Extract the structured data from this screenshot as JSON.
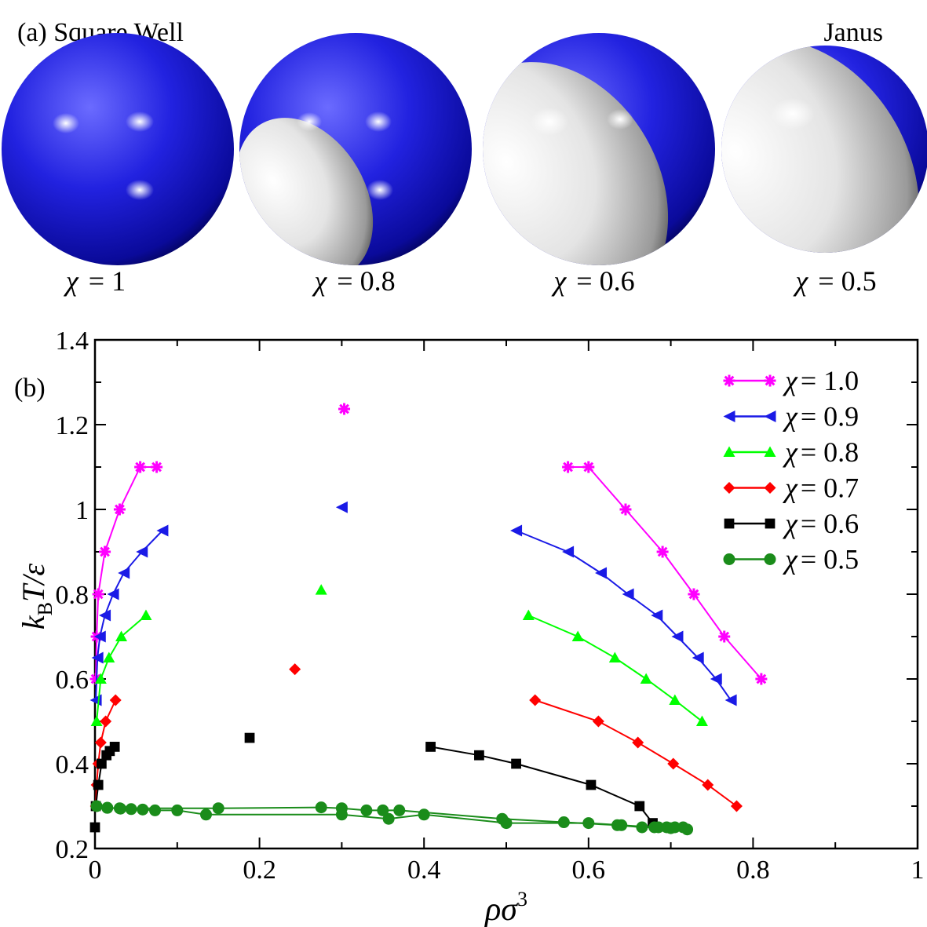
{
  "panel_a": {
    "label": "(a) Square Well",
    "janus_label": "Janus",
    "spheres": [
      {
        "chi_symbol": "χ",
        "eq": "= 1",
        "chi": 1.0
      },
      {
        "chi_symbol": "χ",
        "eq": "= 0.8",
        "chi": 0.8
      },
      {
        "chi_symbol": "χ",
        "eq": "= 0.6",
        "chi": 0.6
      },
      {
        "chi_symbol": "χ",
        "eq": "= 0.5",
        "chi": 0.5
      }
    ],
    "colors": {
      "patch": "#1a1ae6",
      "inert": "#d9d9d9"
    }
  },
  "chart_data": {
    "type": "scatter",
    "panel_label": "(b)",
    "xlabel": {
      "main": "ρσ",
      "sup": "3"
    },
    "ylabel": {
      "k": "k",
      "sub": "B",
      "rest": "T/ε"
    },
    "xlim": [
      0,
      1
    ],
    "ylim": [
      0.2,
      1.4
    ],
    "xticks": [
      0,
      0.2,
      0.4,
      0.6,
      0.8,
      1
    ],
    "xtick_labels": [
      "0",
      "0.2",
      "0.4",
      "0.6",
      "0.8",
      "1"
    ],
    "yticks": [
      0.2,
      0.4,
      0.6,
      0.8,
      1.0,
      1.2,
      1.4
    ],
    "ytick_labels": [
      "0.2",
      "0.4",
      "0.6",
      "0.8",
      "1",
      "1.2",
      "1.4"
    ],
    "legend_position": "top-right",
    "series": [
      {
        "name": "χ = 1.0",
        "legend_sym": "χ",
        "legend_eq": "= 1.0",
        "color": "#ff00ff",
        "marker": "asterisk",
        "lines": [
          [
            [
              0.001,
              0.6
            ],
            [
              0.002,
              0.7
            ],
            [
              0.004,
              0.8
            ],
            [
              0.012,
              0.9
            ],
            [
              0.03,
              1.0
            ],
            [
              0.055,
              1.1
            ],
            [
              0.075,
              1.1
            ]
          ],
          [
            [
              0.575,
              1.1
            ],
            [
              0.6,
              1.1
            ],
            [
              0.645,
              1.0
            ],
            [
              0.69,
              0.9
            ],
            [
              0.728,
              0.8
            ],
            [
              0.765,
              0.7
            ],
            [
              0.81,
              0.6
            ]
          ]
        ],
        "critical": [
          0.303,
          1.237
        ]
      },
      {
        "name": "χ = 0.9",
        "legend_sym": "χ",
        "legend_eq": "= 0.9",
        "color": "#1a1ae6",
        "marker": "triangle-left",
        "lines": [
          [
            [
              0.001,
              0.55
            ],
            [
              0.003,
              0.65
            ],
            [
              0.006,
              0.7
            ],
            [
              0.012,
              0.75
            ],
            [
              0.022,
              0.8
            ],
            [
              0.035,
              0.85
            ],
            [
              0.057,
              0.9
            ],
            [
              0.082,
              0.95
            ]
          ],
          [
            [
              0.512,
              0.95
            ],
            [
              0.575,
              0.9
            ],
            [
              0.615,
              0.85
            ],
            [
              0.648,
              0.8
            ],
            [
              0.683,
              0.75
            ],
            [
              0.708,
              0.7
            ],
            [
              0.733,
              0.65
            ],
            [
              0.755,
              0.6
            ],
            [
              0.773,
              0.55
            ]
          ]
        ],
        "critical": [
          0.3,
          1.005
        ]
      },
      {
        "name": "χ = 0.8",
        "legend_sym": "χ",
        "legend_eq": "= 0.8",
        "color": "#00ff00",
        "marker": "triangle-up",
        "lines": [
          [
            [
              0.002,
              0.5
            ],
            [
              0.007,
              0.6
            ],
            [
              0.017,
              0.65
            ],
            [
              0.032,
              0.7
            ],
            [
              0.062,
              0.75
            ]
          ],
          [
            [
              0.527,
              0.75
            ],
            [
              0.587,
              0.7
            ],
            [
              0.632,
              0.65
            ],
            [
              0.67,
              0.6
            ],
            [
              0.705,
              0.55
            ],
            [
              0.738,
              0.5
            ]
          ]
        ],
        "critical": [
          0.275,
          0.81
        ]
      },
      {
        "name": "χ = 0.7",
        "legend_sym": "χ",
        "legend_eq": "= 0.7",
        "color": "#ff0000",
        "marker": "diamond",
        "lines": [
          [
            [
              0.001,
              0.3
            ],
            [
              0.002,
              0.35
            ],
            [
              0.004,
              0.4
            ],
            [
              0.007,
              0.45
            ],
            [
              0.013,
              0.5
            ],
            [
              0.025,
              0.55
            ]
          ],
          [
            [
              0.535,
              0.55
            ],
            [
              0.612,
              0.5
            ],
            [
              0.66,
              0.45
            ],
            [
              0.703,
              0.4
            ],
            [
              0.745,
              0.35
            ],
            [
              0.78,
              0.3
            ]
          ]
        ],
        "critical": [
          0.243,
          0.623
        ]
      },
      {
        "name": "χ = 0.6",
        "legend_sym": "χ",
        "legend_eq": "= 0.6",
        "color": "#000000",
        "marker": "square",
        "lines": [
          [
            [
              0.001,
              0.3
            ],
            [
              0.004,
              0.35
            ],
            [
              0.008,
              0.4
            ],
            [
              0.014,
              0.42
            ],
            [
              0.018,
              0.43
            ],
            [
              0.024,
              0.44
            ]
          ],
          [
            [
              0.408,
              0.44
            ],
            [
              0.467,
              0.42
            ],
            [
              0.512,
              0.4
            ],
            [
              0.603,
              0.35
            ],
            [
              0.662,
              0.3
            ],
            [
              0.678,
              0.26
            ]
          ]
        ],
        "critical": [
          0.188,
          0.461
        ],
        "extra_points": [
          [
            0.0,
            0.25
          ]
        ]
      },
      {
        "name": "χ = 0.5",
        "legend_sym": "χ",
        "legend_eq": "= 0.5",
        "color": "#1a8c1a",
        "marker": "circle",
        "lines": [
          [
            [
              0.002,
              0.3
            ],
            [
              0.015,
              0.296
            ],
            [
              0.031,
              0.294
            ],
            [
              0.044,
              0.293
            ],
            [
              0.058,
              0.292
            ],
            [
              0.073,
              0.29
            ],
            [
              0.1,
              0.29
            ],
            [
              0.135,
              0.28
            ],
            [
              0.3,
              0.28
            ],
            [
              0.357,
              0.27
            ],
            [
              0.4,
              0.28
            ],
            [
              0.5,
              0.26
            ],
            [
              0.6,
              0.26
            ],
            [
              0.64,
              0.255
            ],
            [
              0.68,
              0.25
            ],
            [
              0.695,
              0.25
            ],
            [
              0.705,
              0.25
            ],
            [
              0.715,
              0.25
            ]
          ],
          [
            [
              0.015,
              0.296
            ],
            [
              0.03,
              0.295
            ],
            [
              0.15,
              0.295
            ],
            [
              0.275,
              0.297
            ],
            [
              0.3,
              0.295
            ],
            [
              0.33,
              0.29
            ],
            [
              0.35,
              0.29
            ],
            [
              0.37,
              0.29
            ],
            [
              0.495,
              0.27
            ],
            [
              0.57,
              0.262
            ],
            [
              0.635,
              0.255
            ],
            [
              0.665,
              0.25
            ],
            [
              0.685,
              0.25
            ],
            [
              0.7,
              0.248
            ],
            [
              0.72,
              0.245
            ]
          ]
        ],
        "critical": null
      }
    ]
  }
}
